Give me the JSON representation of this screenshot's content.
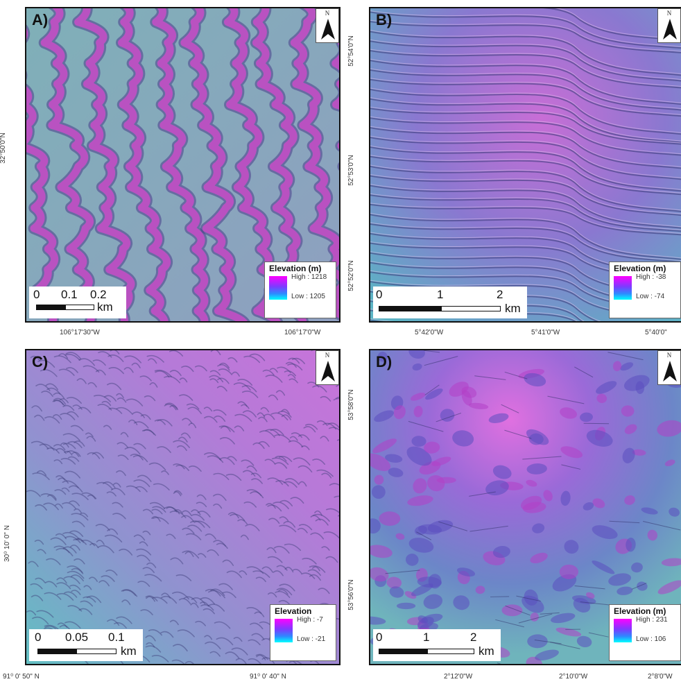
{
  "panels": {
    "a": {
      "label": "A)",
      "north": "N",
      "scale": {
        "t0": "0",
        "t1": "0.1",
        "t2": "0.2",
        "unit": "km"
      },
      "legend": {
        "title": "Elevation (m)",
        "high": "High : 1218",
        "low": "Low : 1205"
      },
      "x_ticks": [
        "106°17'30\"W",
        "106°17'0\"W"
      ],
      "y_ticks": [
        "32°50'0\"N"
      ]
    },
    "b": {
      "label": "B)",
      "north": "N",
      "scale": {
        "t0": "0",
        "t1": "1",
        "t2": "2",
        "unit": "km"
      },
      "legend": {
        "title": "Elevation (m)",
        "high": "High : -38",
        "low": "Low : -74"
      },
      "x_ticks": [
        "5°42'0\"W",
        "5°41'0\"W",
        "5°40'0\""
      ],
      "y_ticks": [
        "52°54'0\"N",
        "52°53'0\"N",
        "52°52'0\"N"
      ]
    },
    "c": {
      "label": "C)",
      "north": "N",
      "scale": {
        "t0": "0",
        "t1": "0.05",
        "t2": "0.1",
        "unit": "km"
      },
      "legend": {
        "title": "Elevation",
        "high": "High : -7",
        "low": "Low : -21"
      },
      "x_ticks": [
        "91⁰ 0' 50\" N",
        "91⁰ 0' 40\" N"
      ],
      "y_ticks": [
        "30⁰ 10' 0\" N"
      ]
    },
    "d": {
      "label": "D)",
      "north": "N",
      "scale": {
        "t0": "0",
        "t1": "1",
        "t2": "2",
        "unit": "km"
      },
      "legend": {
        "title": "Elevation (m)",
        "high": "High : 231",
        "low": "Low : 106"
      },
      "x_ticks": [
        "2°12'0\"W",
        "2°10'0\"W",
        "2°8'0\"W"
      ],
      "y_ticks": [
        "53°58'0\"N",
        "53°56'0\"N"
      ]
    }
  },
  "colors": {
    "high": "#ff00ff",
    "mid": "#7b3cff",
    "low": "#00ffff",
    "flat": "#8fa9b4"
  }
}
